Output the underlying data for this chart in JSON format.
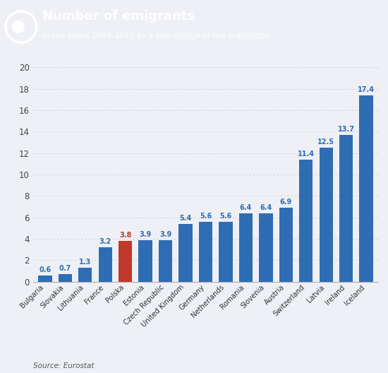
{
  "title": "Number of emigrants",
  "subtitle": "In the years 2004-2013 as a percentage of the population",
  "source": "Source: Eurostat",
  "categories": [
    "Bulgaria",
    "Slovakia",
    "Lithuania",
    "France",
    "Polska",
    "Estonia",
    "Czech Republic",
    "United Kingdom",
    "Germany",
    "Netherlands",
    "Romania",
    "Slovenia",
    "Austria",
    "Switzerland",
    "Latvia",
    "Ireland",
    "Iceland"
  ],
  "values": [
    0.6,
    0.7,
    1.3,
    3.2,
    3.8,
    3.9,
    3.9,
    5.4,
    5.6,
    5.6,
    6.4,
    6.4,
    6.9,
    11.4,
    12.5,
    13.7,
    17.4
  ],
  "bar_colors": [
    "#2e6db4",
    "#2e6db4",
    "#2e6db4",
    "#2e6db4",
    "#c0392b",
    "#2e6db4",
    "#2e6db4",
    "#2e6db4",
    "#2e6db4",
    "#2e6db4",
    "#2e6db4",
    "#2e6db4",
    "#2e6db4",
    "#2e6db4",
    "#2e6db4",
    "#2e6db4",
    "#2e6db4"
  ],
  "ylim": [
    0,
    21
  ],
  "yticks": [
    0,
    2,
    4,
    6,
    8,
    10,
    12,
    14,
    16,
    18,
    20
  ],
  "header_bg": "#0d1f5c",
  "header_title_color": "#ffffff",
  "header_subtitle_color": "#ffffff",
  "chart_bg": "#eef0f5",
  "value_label_color": "#2e6db4",
  "value_label_color_red": "#c0392b",
  "source_color": "#555555",
  "grid_color": "#cccccc"
}
